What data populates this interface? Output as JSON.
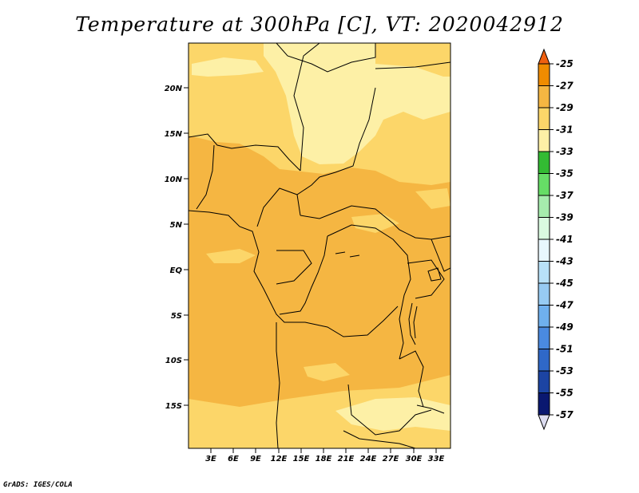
{
  "title": "Temperature at 300hPa [C], VT: 2020042912",
  "credit": "GrADS: IGES/COLA",
  "map": {
    "lat_labels": [
      "20N",
      "15N",
      "10N",
      "5N",
      "EQ",
      "5S",
      "10S",
      "15S"
    ],
    "lon_labels": [
      "3E",
      "6E",
      "9E",
      "12E",
      "15E",
      "18E",
      "21E",
      "24E",
      "27E",
      "30E",
      "33E"
    ],
    "colors": {
      "band_29_31": "#f5b642",
      "band_31_33": "#fcd669",
      "band_33_35": "#fdf0a6",
      "coast": "#000000"
    }
  },
  "colorbar": {
    "labels": [
      "-25",
      "-27",
      "-29",
      "-31",
      "-33",
      "-35",
      "-37",
      "-39",
      "-41",
      "-43",
      "-45",
      "-47",
      "-49",
      "-51",
      "-53",
      "-55",
      "-57"
    ],
    "colors": [
      "#f06010",
      "#f08c00",
      "#f5b642",
      "#fcd669",
      "#fdf0a6",
      "#33bb33",
      "#66dd66",
      "#a6ecad",
      "#dafae0",
      "#e8f7fd",
      "#b8e1f8",
      "#97cbf3",
      "#6fb0ee",
      "#4a8ae0",
      "#2f68c8",
      "#1c44a3",
      "#0a1870",
      "#dcdcf0"
    ]
  }
}
